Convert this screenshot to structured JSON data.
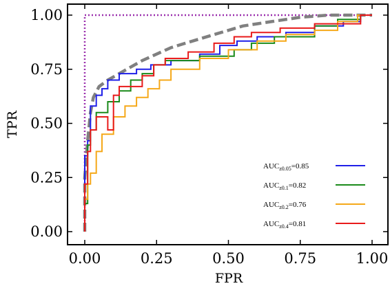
{
  "chart_data": {
    "type": "line",
    "xlabel": "FPR",
    "ylabel": "TPR",
    "xlim": [
      0.0,
      1.0
    ],
    "ylim": [
      0.0,
      1.0
    ],
    "xticks": [
      "0.00",
      "0.25",
      "0.50",
      "0.75",
      "1.00"
    ],
    "yticks": [
      "0.00",
      "0.25",
      "0.50",
      "0.75",
      "1.00"
    ],
    "grid": false,
    "legend_position": "lower-right",
    "reference_curves": [
      {
        "style": "dotted",
        "color": "#9b2fae",
        "points": [
          [
            0.0,
            0.0
          ],
          [
            0.0,
            1.0
          ],
          [
            1.0,
            1.0
          ]
        ]
      },
      {
        "style": "dashed",
        "color": "#808080",
        "points": [
          [
            0.0,
            0.0
          ],
          [
            0.0,
            0.25
          ],
          [
            0.01,
            0.42
          ],
          [
            0.02,
            0.55
          ],
          [
            0.03,
            0.62
          ],
          [
            0.05,
            0.67
          ],
          [
            0.08,
            0.7
          ],
          [
            0.12,
            0.73
          ],
          [
            0.16,
            0.76
          ],
          [
            0.2,
            0.79
          ],
          [
            0.25,
            0.82
          ],
          [
            0.3,
            0.85
          ],
          [
            0.35,
            0.87
          ],
          [
            0.4,
            0.89
          ],
          [
            0.45,
            0.91
          ],
          [
            0.5,
            0.93
          ],
          [
            0.55,
            0.95
          ],
          [
            0.6,
            0.96
          ],
          [
            0.65,
            0.97
          ],
          [
            0.7,
            0.98
          ],
          [
            0.75,
            0.99
          ],
          [
            0.8,
            0.995
          ],
          [
            0.85,
            1.0
          ],
          [
            1.0,
            1.0
          ]
        ]
      }
    ],
    "series": [
      {
        "name_base": "AUC",
        "name_sub": "z0.05",
        "name_value": "=0.85",
        "color": "#1f1fe8",
        "points": [
          [
            0.0,
            0.0
          ],
          [
            0.0,
            0.35
          ],
          [
            0.01,
            0.35
          ],
          [
            0.01,
            0.42
          ],
          [
            0.02,
            0.42
          ],
          [
            0.02,
            0.58
          ],
          [
            0.04,
            0.58
          ],
          [
            0.04,
            0.63
          ],
          [
            0.06,
            0.63
          ],
          [
            0.06,
            0.66
          ],
          [
            0.08,
            0.66
          ],
          [
            0.08,
            0.7
          ],
          [
            0.12,
            0.7
          ],
          [
            0.12,
            0.73
          ],
          [
            0.18,
            0.73
          ],
          [
            0.18,
            0.75
          ],
          [
            0.23,
            0.75
          ],
          [
            0.23,
            0.77
          ],
          [
            0.3,
            0.77
          ],
          [
            0.3,
            0.79
          ],
          [
            0.4,
            0.79
          ],
          [
            0.4,
            0.82
          ],
          [
            0.47,
            0.82
          ],
          [
            0.47,
            0.86
          ],
          [
            0.53,
            0.86
          ],
          [
            0.53,
            0.88
          ],
          [
            0.6,
            0.88
          ],
          [
            0.6,
            0.9
          ],
          [
            0.7,
            0.9
          ],
          [
            0.7,
            0.92
          ],
          [
            0.8,
            0.92
          ],
          [
            0.8,
            0.95
          ],
          [
            0.9,
            0.95
          ],
          [
            0.9,
            0.97
          ],
          [
            0.96,
            0.97
          ],
          [
            0.96,
            1.0
          ],
          [
            1.0,
            1.0
          ]
        ]
      },
      {
        "name_base": "AUC",
        "name_sub": "z0.1",
        "name_value": "=0.82",
        "color": "#1a8a1a",
        "points": [
          [
            0.0,
            0.0
          ],
          [
            0.0,
            0.13
          ],
          [
            0.01,
            0.13
          ],
          [
            0.01,
            0.4
          ],
          [
            0.02,
            0.4
          ],
          [
            0.02,
            0.47
          ],
          [
            0.04,
            0.47
          ],
          [
            0.04,
            0.55
          ],
          [
            0.08,
            0.55
          ],
          [
            0.08,
            0.6
          ],
          [
            0.12,
            0.6
          ],
          [
            0.12,
            0.65
          ],
          [
            0.16,
            0.65
          ],
          [
            0.16,
            0.7
          ],
          [
            0.2,
            0.7
          ],
          [
            0.2,
            0.73
          ],
          [
            0.24,
            0.73
          ],
          [
            0.24,
            0.77
          ],
          [
            0.28,
            0.77
          ],
          [
            0.28,
            0.79
          ],
          [
            0.4,
            0.79
          ],
          [
            0.4,
            0.81
          ],
          [
            0.52,
            0.81
          ],
          [
            0.52,
            0.84
          ],
          [
            0.58,
            0.84
          ],
          [
            0.58,
            0.87
          ],
          [
            0.66,
            0.87
          ],
          [
            0.66,
            0.9
          ],
          [
            0.8,
            0.9
          ],
          [
            0.8,
            0.95
          ],
          [
            0.88,
            0.95
          ],
          [
            0.88,
            0.98
          ],
          [
            0.96,
            0.98
          ],
          [
            0.96,
            1.0
          ],
          [
            1.0,
            1.0
          ]
        ]
      },
      {
        "name_base": "AUC",
        "name_sub": "z0.2",
        "name_value": "=0.76",
        "color": "#f5a818",
        "points": [
          [
            0.0,
            0.0
          ],
          [
            0.0,
            0.15
          ],
          [
            0.01,
            0.15
          ],
          [
            0.01,
            0.22
          ],
          [
            0.02,
            0.22
          ],
          [
            0.02,
            0.27
          ],
          [
            0.04,
            0.27
          ],
          [
            0.04,
            0.37
          ],
          [
            0.06,
            0.37
          ],
          [
            0.06,
            0.45
          ],
          [
            0.1,
            0.45
          ],
          [
            0.1,
            0.53
          ],
          [
            0.14,
            0.53
          ],
          [
            0.14,
            0.58
          ],
          [
            0.18,
            0.58
          ],
          [
            0.18,
            0.62
          ],
          [
            0.22,
            0.62
          ],
          [
            0.22,
            0.66
          ],
          [
            0.26,
            0.66
          ],
          [
            0.26,
            0.7
          ],
          [
            0.3,
            0.7
          ],
          [
            0.3,
            0.75
          ],
          [
            0.4,
            0.75
          ],
          [
            0.4,
            0.8
          ],
          [
            0.5,
            0.8
          ],
          [
            0.5,
            0.84
          ],
          [
            0.6,
            0.84
          ],
          [
            0.6,
            0.88
          ],
          [
            0.7,
            0.88
          ],
          [
            0.7,
            0.91
          ],
          [
            0.8,
            0.91
          ],
          [
            0.8,
            0.93
          ],
          [
            0.88,
            0.93
          ],
          [
            0.88,
            0.97
          ],
          [
            0.95,
            0.97
          ],
          [
            0.95,
            1.0
          ],
          [
            1.0,
            1.0
          ]
        ]
      },
      {
        "name_base": "AUC",
        "name_sub": "z0.4",
        "name_value": "=0.81",
        "color": "#e81a1a",
        "points": [
          [
            0.0,
            0.0
          ],
          [
            0.0,
            0.22
          ],
          [
            0.01,
            0.22
          ],
          [
            0.01,
            0.37
          ],
          [
            0.02,
            0.37
          ],
          [
            0.02,
            0.47
          ],
          [
            0.04,
            0.47
          ],
          [
            0.04,
            0.53
          ],
          [
            0.08,
            0.53
          ],
          [
            0.08,
            0.47
          ],
          [
            0.1,
            0.47
          ],
          [
            0.1,
            0.63
          ],
          [
            0.12,
            0.63
          ],
          [
            0.12,
            0.67
          ],
          [
            0.2,
            0.67
          ],
          [
            0.2,
            0.72
          ],
          [
            0.24,
            0.72
          ],
          [
            0.24,
            0.77
          ],
          [
            0.28,
            0.77
          ],
          [
            0.28,
            0.8
          ],
          [
            0.36,
            0.8
          ],
          [
            0.36,
            0.83
          ],
          [
            0.45,
            0.83
          ],
          [
            0.45,
            0.87
          ],
          [
            0.52,
            0.87
          ],
          [
            0.52,
            0.9
          ],
          [
            0.58,
            0.9
          ],
          [
            0.58,
            0.92
          ],
          [
            0.68,
            0.92
          ],
          [
            0.68,
            0.94
          ],
          [
            0.8,
            0.94
          ],
          [
            0.8,
            0.96
          ],
          [
            0.96,
            0.96
          ],
          [
            0.96,
            1.0
          ],
          [
            1.0,
            1.0
          ]
        ]
      }
    ]
  }
}
